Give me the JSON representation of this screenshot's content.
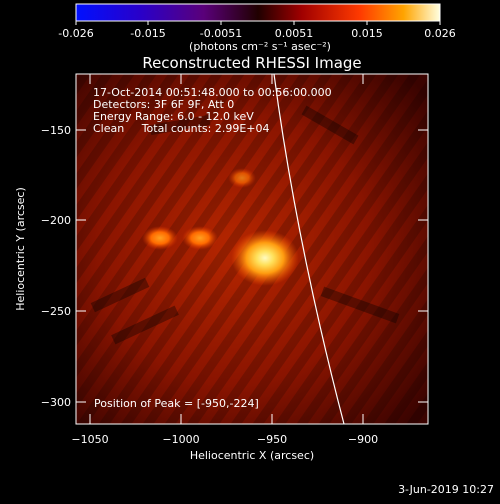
{
  "colorbar": {
    "ticks": [
      "-0.026",
      "-0.015",
      "-0.0051",
      "0.0051",
      "0.015",
      "0.026"
    ],
    "units_label": "(photons cm⁻² s⁻¹ asec⁻²)"
  },
  "plot": {
    "title": "Reconstructed RHESSI Image",
    "info_lines": [
      "17-Oct-2014 00:51:48.000 to 00:56:00.000",
      "Detectors: 3F 6F 9F, Att 0",
      "Energy Range: 6.0 - 12.0 keV",
      "Clean     Total counts: 2.99E+04"
    ],
    "peak_text": "Position of Peak = [-950,-224]",
    "xlabel": "Heliocentric X (arcsec)",
    "ylabel": "Heliocentric Y (arcsec)",
    "x_ticks": [
      "−1050",
      "−1000",
      "−950",
      "−900"
    ],
    "y_ticks": [
      "−150",
      "−200",
      "−250",
      "−300"
    ]
  },
  "footer": {
    "timestamp": "3-Jun-2019 10:27"
  },
  "colors": {
    "background": "#000000",
    "image_base": "#7a0a00",
    "peak": "#fff8a0"
  }
}
